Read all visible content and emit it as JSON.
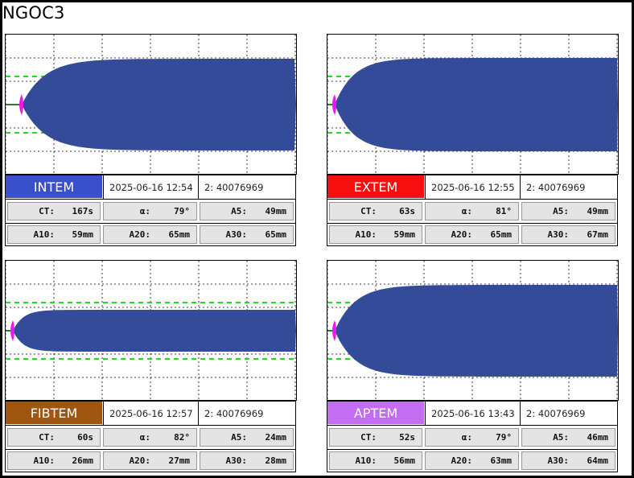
{
  "title": "NGOC3",
  "colors": {
    "trace": "#344b9a",
    "start_marker": "#ee16ee",
    "limit_lines": "#1fdc1f"
  },
  "panels": [
    {
      "test": "INTEM",
      "color": "#3a4fcb",
      "datetime": "2025-06-16  12:54",
      "run_id": "2: 40076969",
      "CT": "167s",
      "alpha": "79°",
      "A5": "49mm",
      "A10": "59mm",
      "A20": "65mm",
      "A30": "65mm"
    },
    {
      "test": "EXTEM",
      "color": "#f50f0f",
      "datetime": "2025-06-16  12:55",
      "run_id": "2: 40076969",
      "CT": "63s",
      "alpha": "81°",
      "A5": "49mm",
      "A10": "59mm",
      "A20": "65mm",
      "A30": "67mm"
    },
    {
      "test": "FIBTEM",
      "color": "#a0560f",
      "datetime": "2025-06-16  12:57",
      "run_id": "2: 40076969",
      "CT": "60s",
      "alpha": "82°",
      "A5": "24mm",
      "A10": "26mm",
      "A20": "27mm",
      "A30": "28mm"
    },
    {
      "test": "APTEM",
      "color": "#c46cf3",
      "datetime": "2025-06-16  13:43",
      "run_id": "2: 40076969",
      "CT": "52s",
      "alpha": "79°",
      "A5": "46mm",
      "A10": "56mm",
      "A20": "63mm",
      "A30": "64mm"
    }
  ],
  "labels": {
    "ct": "CT:",
    "alpha": "α:",
    "a5": "A5:",
    "a10": "A10:",
    "a20": "A20:",
    "a30": "A30:"
  }
}
